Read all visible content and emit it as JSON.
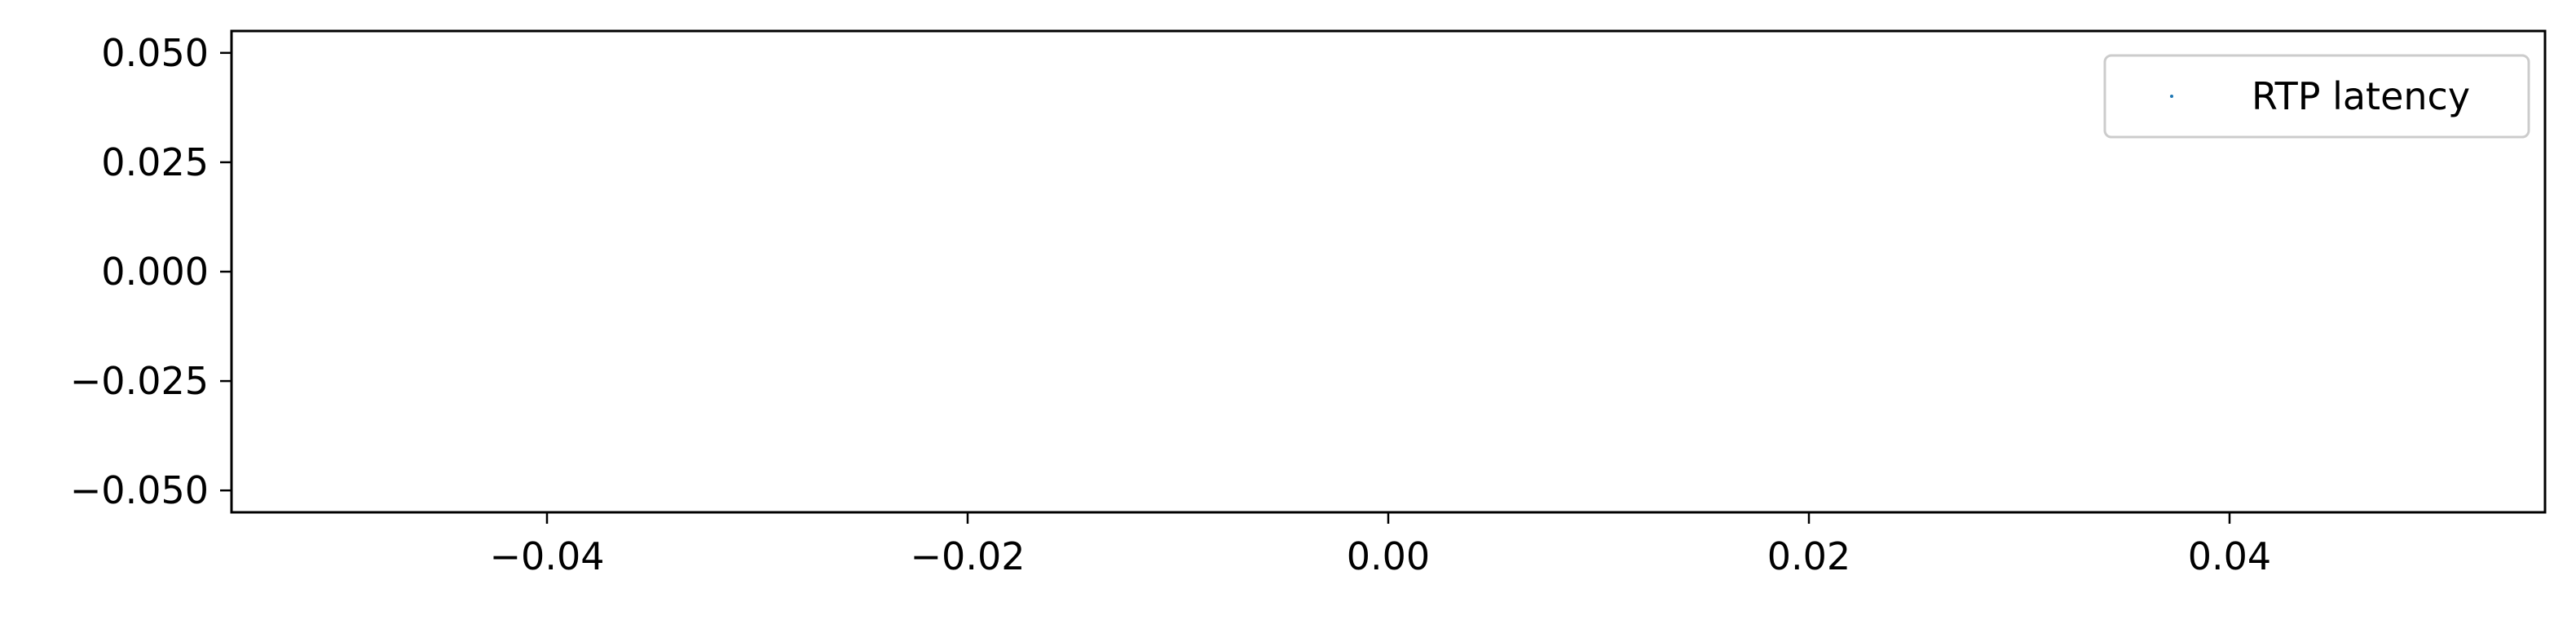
{
  "chart_data": {
    "type": "scatter",
    "title": "",
    "xlabel": "",
    "ylabel": "",
    "xlim": [
      -0.055,
      0.055
    ],
    "ylim": [
      -0.055,
      0.055
    ],
    "x_ticks": [
      -0.04,
      -0.02,
      0.0,
      0.02,
      0.04
    ],
    "x_tick_labels": [
      "−0.04",
      "−0.02",
      "0.00",
      "0.02",
      "0.04"
    ],
    "y_ticks": [
      0.05,
      0.025,
      0.0,
      -0.025,
      -0.05
    ],
    "y_tick_labels": [
      "0.050",
      "0.025",
      "0.000",
      "−0.025",
      "−0.050"
    ],
    "grid": false,
    "legend_position": "top-right",
    "series": [
      {
        "name": "RTP latency",
        "color": "#1f77b4",
        "marker": "point",
        "x": [],
        "y": []
      }
    ]
  }
}
